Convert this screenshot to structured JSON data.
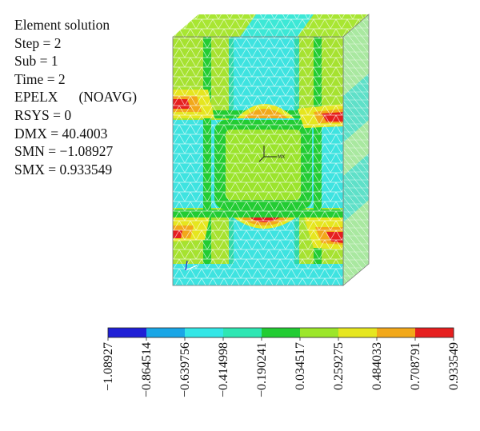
{
  "info_panel": {
    "title": "Element solution",
    "step": "Step = 2",
    "sub": "Sub = 1",
    "time": "Time = 2",
    "quantity": "EPELX",
    "quantity_option": "(NOAVG)",
    "rsys": "RSYS = 0",
    "dmx": "DMX = 40.4003",
    "smn": "SMN = −1.08927",
    "smx": "SMX = 0.933549"
  },
  "triad_label": "MX",
  "legend": {
    "bins": [
      {
        "color": "#1f1fd6"
      },
      {
        "color": "#19a6e6"
      },
      {
        "color": "#33e6e6"
      },
      {
        "color": "#2ee6b3"
      },
      {
        "color": "#22cc33"
      },
      {
        "color": "#9ce62a"
      },
      {
        "color": "#e6e61f"
      },
      {
        "color": "#f2a81a"
      },
      {
        "color": "#e61f1f"
      }
    ],
    "tick_labels": [
      "−1.08927",
      "−0.864514",
      "−0.639756",
      "−0.414998",
      "−0.190241",
      "0.034517",
      "0.259275",
      "0.484033",
      "0.708791",
      "0.933549"
    ]
  },
  "colors": {
    "dark_blue": "#1f1fd6",
    "light_blue": "#19a6e6",
    "cyan": "#33e6e6",
    "teal": "#2ee6b3",
    "green": "#22cc33",
    "yellow_green": "#9ce62a",
    "yellow": "#e6e61f",
    "orange": "#f2a81a",
    "red": "#e61f1f"
  }
}
